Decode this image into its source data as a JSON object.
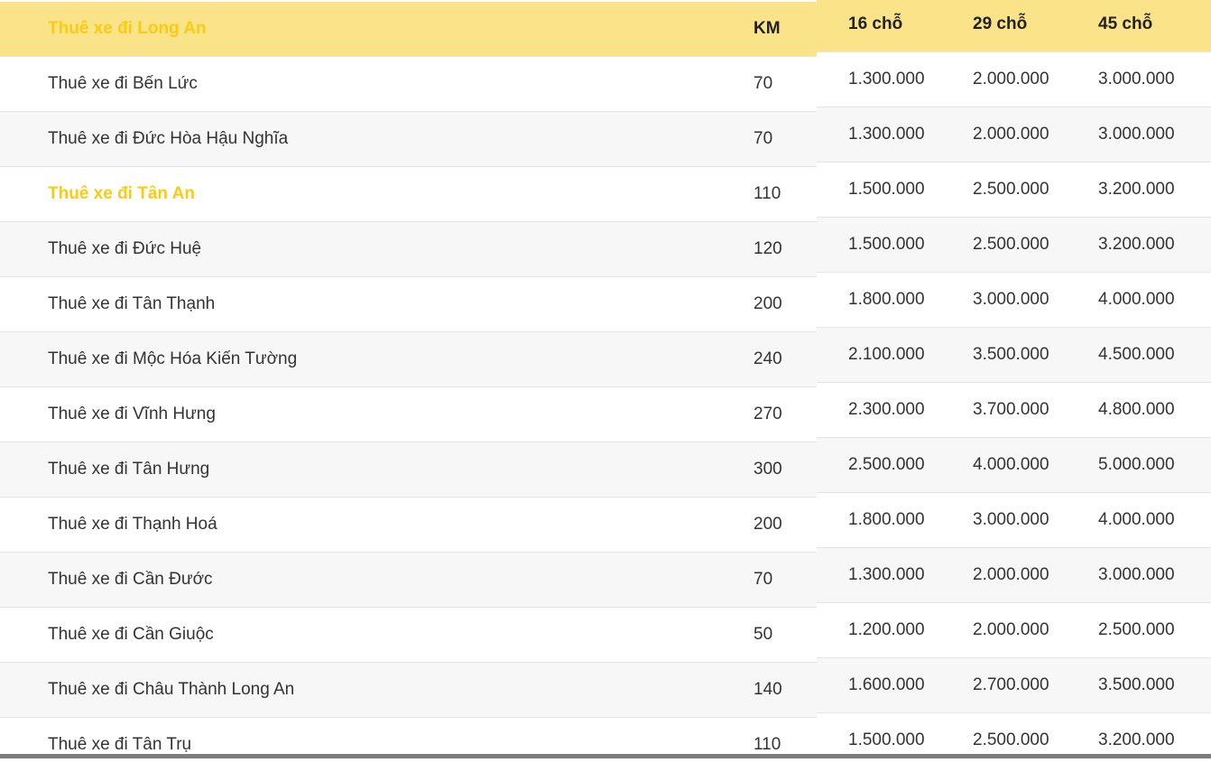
{
  "table": {
    "header": {
      "route": "Thuê xe đi Long An",
      "km": "KM",
      "c16": "16 chỗ",
      "c29": "29 chỗ",
      "c45": "45 chỗ"
    },
    "accent_color": "#f9cc10",
    "header_bg": "#fbe38a",
    "rows": [
      {
        "route": "Thuê xe đi Bến Lức",
        "km": "70",
        "c16": "1.300.000",
        "c29": "2.000.000",
        "c45": "3.000.000"
      },
      {
        "route": "Thuê xe đi Đức Hòa Hậu Nghĩa",
        "km": "70",
        "c16": "1.300.000",
        "c29": "2.000.000",
        "c45": "3.000.000"
      },
      {
        "route": "Thuê xe đi Tân An",
        "km": "110",
        "c16": "1.500.000",
        "c29": "2.500.000",
        "c45": "3.200.000",
        "highlight": true
      },
      {
        "route": "Thuê xe đi Đức Huệ",
        "km": "120",
        "c16": "1.500.000",
        "c29": "2.500.000",
        "c45": "3.200.000"
      },
      {
        "route": "Thuê xe đi Tân Thạnh",
        "km": "200",
        "c16": "1.800.000",
        "c29": "3.000.000",
        "c45": "4.000.000"
      },
      {
        "route": "Thuê xe đi Mộc Hóa Kiến Tường",
        "km": "240",
        "c16": "2.100.000",
        "c29": "3.500.000",
        "c45": "4.500.000"
      },
      {
        "route": "Thuê xe đi Vĩnh Hưng",
        "km": "270",
        "c16": "2.300.000",
        "c29": "3.700.000",
        "c45": "4.800.000"
      },
      {
        "route": "Thuê xe đi Tân Hưng",
        "km": "300",
        "c16": "2.500.000",
        "c29": "4.000.000",
        "c45": "5.000.000"
      },
      {
        "route": "Thuê xe đi Thạnh Hoá",
        "km": "200",
        "c16": "1.800.000",
        "c29": "3.000.000",
        "c45": "4.000.000"
      },
      {
        "route": "Thuê xe đi Cần Đước",
        "km": "70",
        "c16": "1.300.000",
        "c29": "2.000.000",
        "c45": "3.000.000"
      },
      {
        "route": "Thuê xe đi Cần Giuộc",
        "km": "50",
        "c16": "1.200.000",
        "c29": "2.000.000",
        "c45": "2.500.000"
      },
      {
        "route": "Thuê xe đi Châu Thành Long An",
        "km": "140",
        "c16": "1.600.000",
        "c29": "2.700.000",
        "c45": "3.500.000"
      },
      {
        "route": "Thuê xe đi Tân Trụ",
        "km": "110",
        "c16": "1.500.000",
        "c29": "2.500.000",
        "c45": "3.200.000"
      }
    ]
  }
}
